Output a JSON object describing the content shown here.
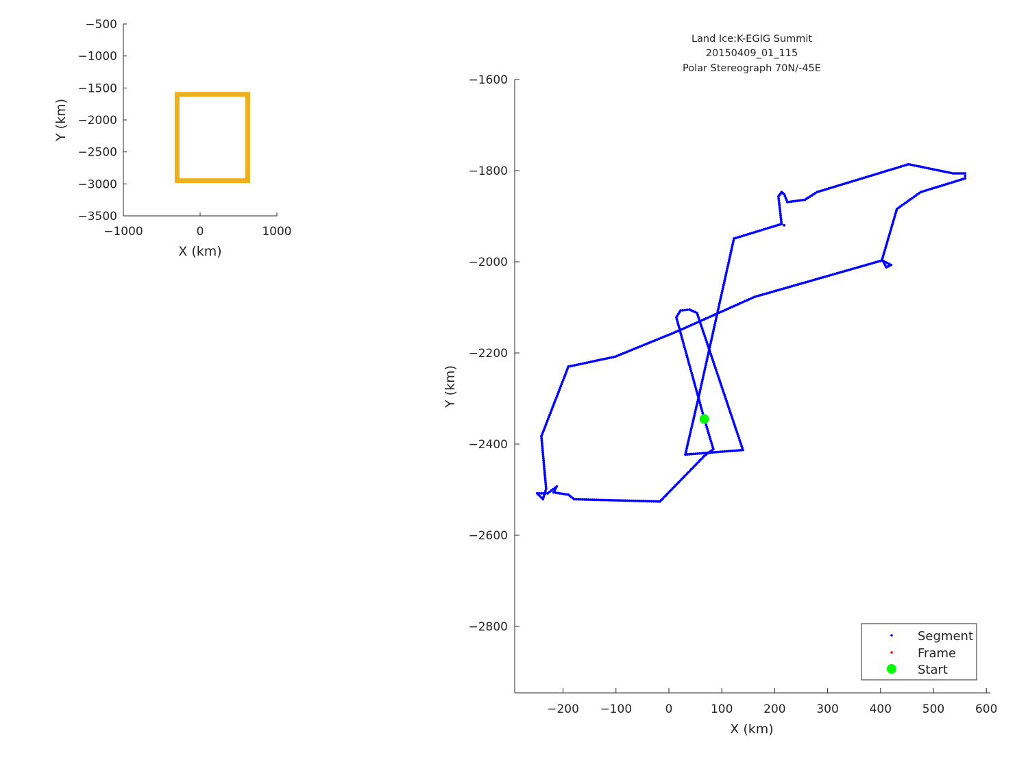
{
  "chart_data": [
    {
      "type": "line",
      "role": "overview-inset",
      "xlabel": "X (km)",
      "ylabel": "Y (km)",
      "xlim": [
        -1000,
        1000
      ],
      "ylim": [
        -3500,
        -500
      ],
      "xticks": [
        -1000,
        0,
        1000
      ],
      "yticks": [
        -500,
        -1000,
        -1500,
        -2000,
        -2500,
        -3000,
        -3500
      ],
      "grid": false,
      "box_color": "#EDB120",
      "box": {
        "x": [
          -300,
          620
        ],
        "y": [
          -2950,
          -1600
        ]
      }
    },
    {
      "type": "scatter",
      "role": "main",
      "title": [
        "Land Ice:K-EGIG Summit",
        "20150409_01_115",
        "Polar Stereograph 70N/-45E"
      ],
      "xlabel": "X (km)",
      "ylabel": "Y (km)",
      "xlim": [
        -291,
        607
      ],
      "ylim": [
        -2946,
        -1600
      ],
      "xticks": [
        -200,
        -100,
        0,
        100,
        200,
        300,
        400,
        500,
        600
      ],
      "yticks": [
        -1600,
        -1800,
        -2000,
        -2200,
        -2400,
        -2600,
        -2800
      ],
      "grid": false,
      "legend": {
        "placement": "bottom-right",
        "entries": [
          "Segment",
          "Frame",
          "Start"
        ]
      },
      "colors": {
        "Segment": "#0000FF",
        "Frame": "#FF0000",
        "Start": "#00FF00"
      },
      "series": [
        {
          "name": "Segment",
          "x": [
            67,
            84,
            67,
            -17,
            -179,
            -190,
            -218,
            -212,
            -229,
            -249,
            -238,
            -232,
            -241,
            -190,
            -101,
            17,
            162,
            403,
            420,
            411,
            403,
            431,
            476,
            560,
            560,
            537,
            453,
            280,
            257,
            224,
            218,
            213,
            207,
            213,
            218,
            213,
            123,
            56,
            31,
            140,
            53,
            39,
            22,
            14,
            67
          ],
          "y": [
            -2345,
            -2411,
            -2426,
            -2526,
            -2521,
            -2511,
            -2506,
            -2493,
            -2508,
            -2508,
            -2521,
            -2498,
            -2383,
            -2230,
            -2208,
            -2152,
            -2077,
            -1997,
            -2007,
            -2012,
            -1995,
            -1884,
            -1847,
            -1817,
            -1806,
            -1806,
            -1786,
            -1847,
            -1864,
            -1869,
            -1852,
            -1847,
            -1857,
            -1917,
            -1920,
            -1917,
            -1949,
            -2298,
            -2423,
            -2413,
            -2112,
            -2105,
            -2107,
            -2122,
            -2345
          ]
        },
        {
          "name": "Start",
          "x": [
            67
          ],
          "y": [
            -2345
          ]
        }
      ]
    }
  ]
}
